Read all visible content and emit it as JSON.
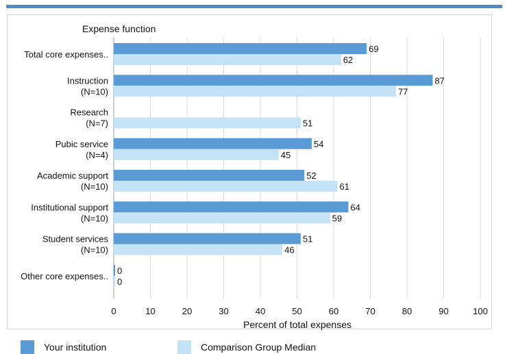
{
  "colors": {
    "your_institution": "#5b9bd5",
    "comparison": "#c5e3f7",
    "grid": "#d9d9d9",
    "accent": "#4d8cc6"
  },
  "chart_data": {
    "type": "bar",
    "orientation": "horizontal",
    "category_axis_title": "Expense function",
    "xlabel": "Percent of total expenses",
    "xlim": [
      0,
      100
    ],
    "xticks": [
      0,
      10,
      20,
      30,
      40,
      50,
      60,
      70,
      80,
      90,
      100
    ],
    "grid": true,
    "legend_position": "bottom",
    "categories": [
      [
        "Total core expenses.."
      ],
      [
        "Instruction",
        "(N=10)"
      ],
      [
        "Research",
        "(N=7)"
      ],
      [
        "Pubic service",
        "(N=4)"
      ],
      [
        "Academic support",
        "(N=10)"
      ],
      [
        "Institutional support",
        "(N=10)"
      ],
      [
        "Student services",
        "(N=10)"
      ],
      [
        "Other core expenses.."
      ]
    ],
    "series": [
      {
        "name": "Your institution",
        "values": [
          69,
          87,
          null,
          54,
          52,
          64,
          51,
          0
        ]
      },
      {
        "name": "Comparison Group Median",
        "values": [
          62,
          77,
          51,
          45,
          61,
          59,
          46,
          0
        ]
      }
    ]
  }
}
